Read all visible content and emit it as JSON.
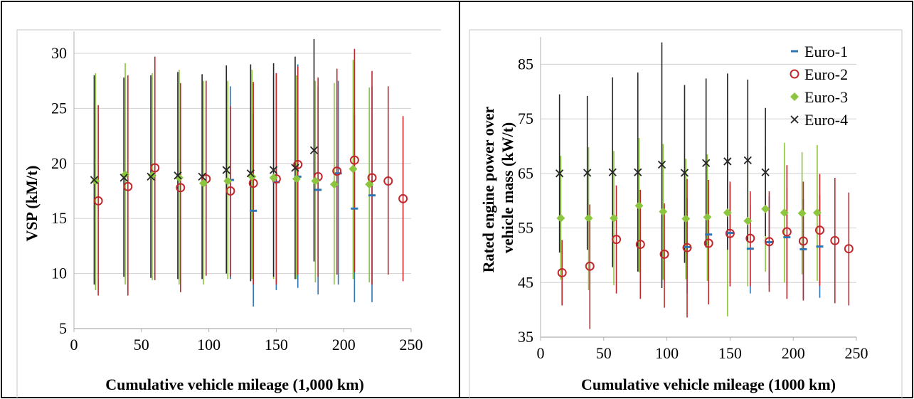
{
  "colors": {
    "euro1": "#2e75b6",
    "euro2": "#c0282d",
    "euro3": "#8cc63f",
    "euro4": "#262626",
    "grid": "#d0d0d0",
    "axis": "#b0b0b0",
    "border": "#000000"
  },
  "chart_data": [
    {
      "type": "scatter",
      "xlabel": "Cumulative vehicle mileage (1,000 km)",
      "ylabel": "VSP (kM/t)",
      "xlim": [
        0,
        250
      ],
      "ylim": [
        5,
        32
      ],
      "xticks": [
        "0",
        "50",
        "100",
        "150",
        "200",
        "250"
      ],
      "yticks": [
        "5",
        "10",
        "15",
        "20",
        "25",
        "30"
      ],
      "grid": true,
      "series": [
        {
          "key": "euro1",
          "marker": "dash",
          "points": [
            {
              "x": 116,
              "y": 18.5,
              "lo": 9.5,
              "hi": 27.0
            },
            {
              "x": 133,
              "y": 15.7,
              "lo": 7.0,
              "hi": 24.5
            },
            {
              "x": 150,
              "y": 18.3,
              "lo": 8.5,
              "hi": 28.2
            },
            {
              "x": 166,
              "y": 18.8,
              "lo": 8.7,
              "hi": 29.0
            },
            {
              "x": 181,
              "y": 17.6,
              "lo": 8.1,
              "hi": 27.0
            },
            {
              "x": 196,
              "y": 19.1,
              "lo": 9.0,
              "hi": 27.5
            },
            {
              "x": 208,
              "y": 15.9,
              "lo": 7.4,
              "hi": 24.4
            },
            {
              "x": 221,
              "y": 17.1,
              "lo": 7.4,
              "hi": 27.0
            }
          ]
        },
        {
          "key": "euro2",
          "marker": "circle",
          "points": [
            {
              "x": 18,
              "y": 16.6,
              "lo": 8.0,
              "hi": 25.3
            },
            {
              "x": 40,
              "y": 17.9,
              "lo": 8.0,
              "hi": 28.0
            },
            {
              "x": 60,
              "y": 19.6,
              "lo": 9.4,
              "hi": 29.7
            },
            {
              "x": 79,
              "y": 17.8,
              "lo": 8.3,
              "hi": 27.3
            },
            {
              "x": 98,
              "y": 18.6,
              "lo": 9.8,
              "hi": 27.5
            },
            {
              "x": 116,
              "y": 17.5,
              "lo": 9.7,
              "hi": 25.2
            },
            {
              "x": 133,
              "y": 18.2,
              "lo": 9.0,
              "hi": 27.4
            },
            {
              "x": 150,
              "y": 18.6,
              "lo": 9.0,
              "hi": 28.2
            },
            {
              "x": 166,
              "y": 19.9,
              "lo": 9.9,
              "hi": 28.8
            },
            {
              "x": 181,
              "y": 18.8,
              "lo": 9.7,
              "hi": 27.8
            },
            {
              "x": 195,
              "y": 19.3,
              "lo": 9.9,
              "hi": 28.6
            },
            {
              "x": 208,
              "y": 20.3,
              "lo": 10.1,
              "hi": 30.4
            },
            {
              "x": 221,
              "y": 18.7,
              "lo": 9.0,
              "hi": 28.4
            },
            {
              "x": 233,
              "y": 18.4,
              "lo": 9.9,
              "hi": 27.0
            },
            {
              "x": 244,
              "y": 16.8,
              "lo": 9.3,
              "hi": 24.3
            }
          ]
        },
        {
          "key": "euro3",
          "marker": "diamond",
          "points": [
            {
              "x": 16,
              "y": 18.4,
              "lo": 8.5,
              "hi": 28.2
            },
            {
              "x": 38,
              "y": 19.0,
              "lo": 9.0,
              "hi": 29.1
            },
            {
              "x": 58,
              "y": 18.9,
              "lo": 9.4,
              "hi": 28.2
            },
            {
              "x": 78,
              "y": 18.7,
              "lo": 9.0,
              "hi": 28.5
            },
            {
              "x": 96,
              "y": 18.2,
              "lo": 9.0,
              "hi": 27.5
            },
            {
              "x": 114,
              "y": 18.4,
              "lo": 9.5,
              "hi": 27.5
            },
            {
              "x": 132,
              "y": 18.8,
              "lo": 9.5,
              "hi": 28.5
            },
            {
              "x": 148,
              "y": 18.7,
              "lo": 9.5,
              "hi": 28.0
            },
            {
              "x": 165,
              "y": 18.6,
              "lo": 9.5,
              "hi": 28.0
            },
            {
              "x": 179,
              "y": 18.4,
              "lo": 9.2,
              "hi": 27.5
            },
            {
              "x": 193,
              "y": 18.1,
              "lo": 9.0,
              "hi": 27.3
            },
            {
              "x": 207,
              "y": 19.5,
              "lo": 9.5,
              "hi": 29.4
            },
            {
              "x": 219,
              "y": 18.1,
              "lo": 9.2,
              "hi": 26.9
            }
          ]
        },
        {
          "key": "euro4",
          "marker": "x",
          "points": [
            {
              "x": 15,
              "y": 18.5,
              "lo": 9.0,
              "hi": 28.0
            },
            {
              "x": 37,
              "y": 18.7,
              "lo": 9.7,
              "hi": 27.8
            },
            {
              "x": 57,
              "y": 18.8,
              "lo": 9.6,
              "hi": 28.0
            },
            {
              "x": 77,
              "y": 18.9,
              "lo": 9.5,
              "hi": 28.3
            },
            {
              "x": 95,
              "y": 18.8,
              "lo": 9.5,
              "hi": 28.1
            },
            {
              "x": 113,
              "y": 19.4,
              "lo": 10.0,
              "hi": 28.9
            },
            {
              "x": 131,
              "y": 19.1,
              "lo": 9.3,
              "hi": 29.0
            },
            {
              "x": 148,
              "y": 19.4,
              "lo": 9.7,
              "hi": 29.1
            },
            {
              "x": 164,
              "y": 19.6,
              "lo": 9.5,
              "hi": 29.7
            },
            {
              "x": 178,
              "y": 21.2,
              "lo": 11.1,
              "hi": 31.3
            }
          ]
        }
      ]
    },
    {
      "type": "scatter",
      "xlabel": "Cumulative vehicle mileage (1000 km)",
      "ylabel": "Rated engine power over vehicle mass (kW/t)",
      "ylabel_lines": [
        "Rated engine power over",
        "vehicle mass (kW/t)"
      ],
      "xlim": [
        0,
        250
      ],
      "ylim": [
        35,
        90
      ],
      "xticks": [
        "0",
        "50",
        "100",
        "150",
        "200",
        "250"
      ],
      "yticks": [
        "35",
        "45",
        "55",
        "65",
        "75",
        "85"
      ],
      "grid": true,
      "legend": {
        "placement": "top-right",
        "entries": [
          {
            "key": "euro1",
            "marker": "dash",
            "label": "Euro-1"
          },
          {
            "key": "euro2",
            "marker": "circle",
            "label": "Euro-2"
          },
          {
            "key": "euro3",
            "marker": "diamond",
            "label": "Euro-3"
          },
          {
            "key": "euro4",
            "marker": "x",
            "label": "Euro-4"
          }
        ]
      },
      "series": [
        {
          "key": "euro1",
          "marker": "dash",
          "points": [
            {
              "x": 116,
              "y": 51.5,
              "lo": 43.0,
              "hi": 60.5
            },
            {
              "x": 133,
              "y": 53.8,
              "lo": 45.5,
              "hi": 62.3
            },
            {
              "x": 150,
              "y": 54.1,
              "lo": 45.0,
              "hi": 63.0
            },
            {
              "x": 166,
              "y": 51.2,
              "lo": 43.0,
              "hi": 59.3
            },
            {
              "x": 181,
              "y": 52.4,
              "lo": 44.5,
              "hi": 60.8
            },
            {
              "x": 195,
              "y": 53.3,
              "lo": 44.5,
              "hi": 62.3
            },
            {
              "x": 208,
              "y": 51.1,
              "lo": 42.0,
              "hi": 60.3
            },
            {
              "x": 221,
              "y": 51.6,
              "lo": 42.2,
              "hi": 61.0
            }
          ]
        },
        {
          "key": "euro2",
          "marker": "circle",
          "points": [
            {
              "x": 17,
              "y": 46.8,
              "lo": 40.8,
              "hi": 52.8
            },
            {
              "x": 39,
              "y": 48.0,
              "lo": 36.5,
              "hi": 59.3
            },
            {
              "x": 60,
              "y": 52.9,
              "lo": 43.0,
              "hi": 62.8
            },
            {
              "x": 79,
              "y": 52.0,
              "lo": 42.0,
              "hi": 62.0
            },
            {
              "x": 98,
              "y": 50.2,
              "lo": 40.4,
              "hi": 59.5
            },
            {
              "x": 116,
              "y": 51.4,
              "lo": 38.6,
              "hi": 64.0
            },
            {
              "x": 133,
              "y": 52.2,
              "lo": 41.0,
              "hi": 63.8
            },
            {
              "x": 150,
              "y": 54.0,
              "lo": 44.3,
              "hi": 63.5
            },
            {
              "x": 166,
              "y": 53.1,
              "lo": 44.3,
              "hi": 61.7
            },
            {
              "x": 181,
              "y": 52.5,
              "lo": 43.3,
              "hi": 61.7
            },
            {
              "x": 195,
              "y": 54.3,
              "lo": 42.0,
              "hi": 66.5
            },
            {
              "x": 208,
              "y": 52.6,
              "lo": 41.7,
              "hi": 63.5
            },
            {
              "x": 221,
              "y": 54.6,
              "lo": 44.4,
              "hi": 64.9
            },
            {
              "x": 233,
              "y": 52.7,
              "lo": 41.2,
              "hi": 64.2
            },
            {
              "x": 244,
              "y": 51.2,
              "lo": 40.8,
              "hi": 61.5
            }
          ]
        },
        {
          "key": "euro3",
          "marker": "diamond",
          "points": [
            {
              "x": 16,
              "y": 56.8,
              "lo": 45.5,
              "hi": 68.2
            },
            {
              "x": 38,
              "y": 56.8,
              "lo": 43.6,
              "hi": 69.8
            },
            {
              "x": 58,
              "y": 56.8,
              "lo": 44.5,
              "hi": 69.1
            },
            {
              "x": 78,
              "y": 59.1,
              "lo": 46.9,
              "hi": 71.5
            },
            {
              "x": 97,
              "y": 58.0,
              "lo": 45.5,
              "hi": 70.4
            },
            {
              "x": 115,
              "y": 56.7,
              "lo": 45.6,
              "hi": 67.7
            },
            {
              "x": 132,
              "y": 57.0,
              "lo": 45.3,
              "hi": 68.5
            },
            {
              "x": 148,
              "y": 57.8,
              "lo": 38.8,
              "hi": 76.8
            },
            {
              "x": 164,
              "y": 56.3,
              "lo": 44.3,
              "hi": 68.3
            },
            {
              "x": 178,
              "y": 58.5,
              "lo": 47.0,
              "hi": 70.0
            },
            {
              "x": 193,
              "y": 57.8,
              "lo": 45.0,
              "hi": 70.6
            },
            {
              "x": 207,
              "y": 57.7,
              "lo": 46.5,
              "hi": 68.9
            },
            {
              "x": 219,
              "y": 57.8,
              "lo": 45.3,
              "hi": 70.2
            }
          ]
        },
        {
          "key": "euro4",
          "marker": "x",
          "points": [
            {
              "x": 15,
              "y": 65.0,
              "lo": 50.5,
              "hi": 79.5
            },
            {
              "x": 37,
              "y": 65.1,
              "lo": 51.0,
              "hi": 79.2
            },
            {
              "x": 57,
              "y": 65.2,
              "lo": 47.8,
              "hi": 82.6
            },
            {
              "x": 77,
              "y": 65.2,
              "lo": 47.0,
              "hi": 83.5
            },
            {
              "x": 96,
              "y": 66.6,
              "lo": 44.0,
              "hi": 89.0
            },
            {
              "x": 114,
              "y": 65.1,
              "lo": 48.6,
              "hi": 81.2
            },
            {
              "x": 131,
              "y": 66.9,
              "lo": 51.4,
              "hi": 82.4
            },
            {
              "x": 148,
              "y": 67.2,
              "lo": 51.0,
              "hi": 83.3
            },
            {
              "x": 164,
              "y": 67.4,
              "lo": 52.5,
              "hi": 82.2
            },
            {
              "x": 178,
              "y": 65.2,
              "lo": 53.5,
              "hi": 77.0
            }
          ]
        }
      ]
    }
  ]
}
